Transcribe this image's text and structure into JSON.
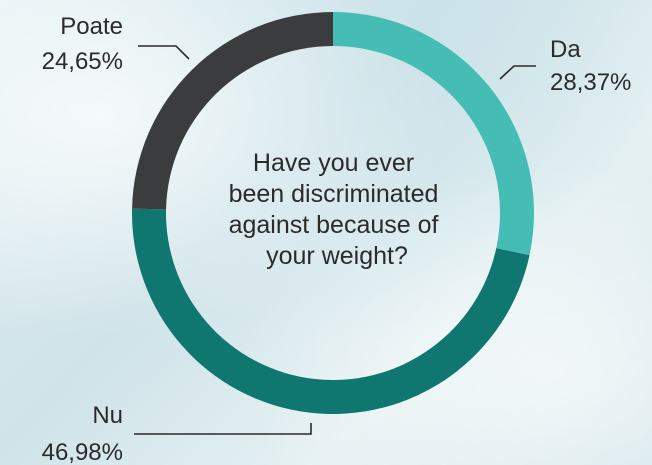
{
  "chart_data": {
    "type": "pie",
    "donut": true,
    "title": "",
    "center_text": [
      "Have you ever",
      "been discriminated",
      "against because of",
      "your weight?"
    ],
    "slices": [
      {
        "name": "Da",
        "value": 28.37,
        "label": "28,37%",
        "color": "#45bdb5"
      },
      {
        "name": "Nu",
        "value": 46.98,
        "label": "46,98%",
        "color": "#0f7670"
      },
      {
        "name": "Poate",
        "value": 24.65,
        "label": "24,65%",
        "color": "#3a3c3d"
      }
    ]
  }
}
